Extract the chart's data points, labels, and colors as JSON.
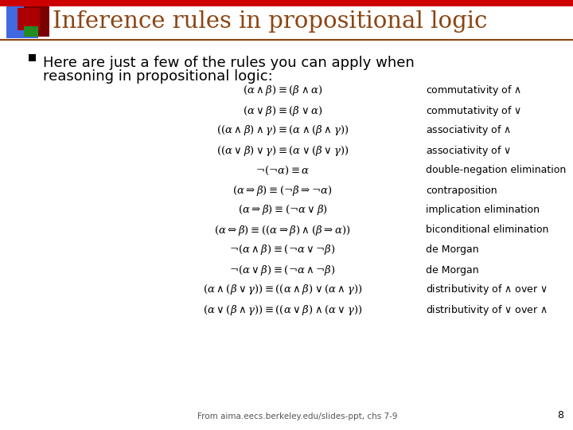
{
  "title": "Inference rules in propositional logic",
  "title_color": "#8B4513",
  "bg_color": "#FFFFFF",
  "bullet_text_line1": "Here are just a few of the rules you can apply when",
  "bullet_text_line2": "reasoning in propositional logic:",
  "footer": "From aima.eecs.berkeley.edu/slides-ppt, chs 7-9",
  "page_number": "8",
  "formulas": [
    [
      "$(\\alpha \\wedge \\beta) \\equiv (\\beta \\wedge \\alpha)$",
      "commutativity of $\\wedge$"
    ],
    [
      "$(\\alpha \\vee \\beta) \\equiv (\\beta \\vee \\alpha)$",
      "commutativity of $\\vee$"
    ],
    [
      "$((\\alpha \\wedge \\beta) \\wedge \\gamma) \\equiv (\\alpha \\wedge (\\beta \\wedge \\gamma))$",
      "associativity of $\\wedge$"
    ],
    [
      "$((\\alpha \\vee \\beta) \\vee \\gamma) \\equiv (\\alpha \\vee (\\beta \\vee \\gamma))$",
      "associativity of $\\vee$"
    ],
    [
      "$\\neg(\\neg\\alpha) \\equiv \\alpha$",
      "double-negation elimination"
    ],
    [
      "$(\\alpha \\Rightarrow \\beta) \\equiv (\\neg\\beta \\Rightarrow \\neg\\alpha)$",
      "contraposition"
    ],
    [
      "$(\\alpha \\Rightarrow \\beta) \\equiv (\\neg\\alpha \\vee \\beta)$",
      "implication elimination"
    ],
    [
      "$(\\alpha \\Leftrightarrow \\beta) \\equiv ((\\alpha \\Rightarrow \\beta) \\wedge (\\beta \\Rightarrow \\alpha))$",
      "biconditional elimination"
    ],
    [
      "$\\neg(\\alpha \\wedge \\beta) \\equiv (\\neg\\alpha \\vee \\neg\\beta)$",
      "de Morgan"
    ],
    [
      "$\\neg(\\alpha \\vee \\beta) \\equiv (\\neg\\alpha \\wedge \\neg\\beta)$",
      "de Morgan"
    ],
    [
      "$(\\alpha \\wedge (\\beta \\vee \\gamma)) \\equiv ((\\alpha \\wedge \\beta) \\vee (\\alpha \\wedge \\gamma))$",
      "distributivity of $\\wedge$ over $\\vee$"
    ],
    [
      "$(\\alpha \\vee (\\beta \\wedge \\gamma)) \\equiv ((\\alpha \\vee \\beta) \\wedge (\\alpha \\vee \\gamma))$",
      "distributivity of $\\vee$ over $\\wedge$"
    ]
  ],
  "icon": {
    "blue_color": "#4169E1",
    "darkred_color": "#7B0000",
    "red_color": "#AA0000",
    "green_color": "#228B22"
  },
  "topbar_color": "#CC0000",
  "line_color": "#8B4513"
}
